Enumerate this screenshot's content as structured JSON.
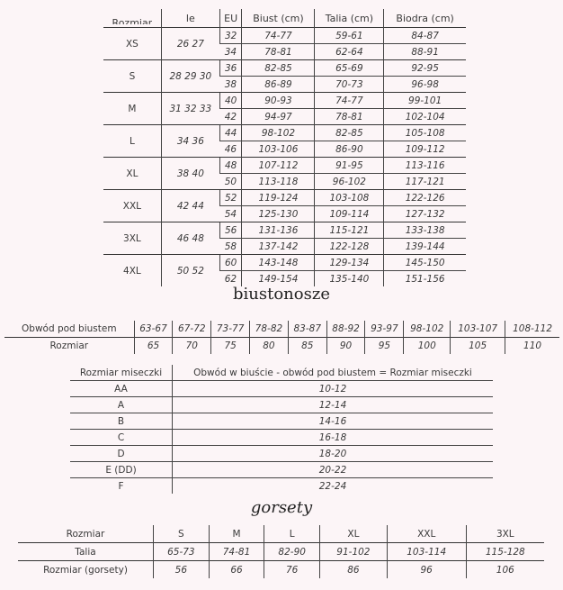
{
  "size_table": {
    "headers": [
      "Rozmiar",
      "le",
      "EU",
      "Biust (cm)",
      "Talia (cm)",
      "Biodra (cm)"
    ],
    "groups": [
      {
        "size": "XS",
        "pl": "26 27",
        "rows": [
          [
            "32",
            "74-77",
            "59-61",
            "84-87"
          ],
          [
            "34",
            "78-81",
            "62-64",
            "88-91"
          ]
        ]
      },
      {
        "size": "S",
        "pl": "28 29 30",
        "rows": [
          [
            "36",
            "82-85",
            "65-69",
            "92-95"
          ],
          [
            "38",
            "86-89",
            "70-73",
            "96-98"
          ]
        ]
      },
      {
        "size": "M",
        "pl": "31 32 33",
        "rows": [
          [
            "40",
            "90-93",
            "74-77",
            "99-101"
          ],
          [
            "42",
            "94-97",
            "78-81",
            "102-104"
          ]
        ]
      },
      {
        "size": "L",
        "pl": "34 36",
        "rows": [
          [
            "44",
            "98-102",
            "82-85",
            "105-108"
          ],
          [
            "46",
            "103-106",
            "86-90",
            "109-112"
          ]
        ]
      },
      {
        "size": "XL",
        "pl": "38 40",
        "rows": [
          [
            "48",
            "107-112",
            "91-95",
            "113-116"
          ],
          [
            "50",
            "113-118",
            "96-102",
            "117-121"
          ]
        ]
      },
      {
        "size": "XXL",
        "pl": "42 44",
        "rows": [
          [
            "52",
            "119-124",
            "103-108",
            "122-126"
          ],
          [
            "54",
            "125-130",
            "109-114",
            "127-132"
          ]
        ]
      },
      {
        "size": "3XL",
        "pl": "46 48",
        "rows": [
          [
            "56",
            "131-136",
            "115-121",
            "133-138"
          ],
          [
            "58",
            "137-142",
            "122-128",
            "139-144"
          ]
        ]
      },
      {
        "size": "4XL",
        "pl": "50 52",
        "rows": [
          [
            "60",
            "143-148",
            "129-134",
            "145-150"
          ],
          [
            "62",
            "149-154",
            "135-140",
            "151-156"
          ]
        ]
      }
    ]
  },
  "bra": {
    "title": "biustonosze",
    "row1": [
      "Obwód pod biustem",
      "63-67",
      "67-72",
      "73-77",
      "78-82",
      "83-87",
      "88-92",
      "93-97",
      "98-102",
      "103-107",
      "108-112"
    ],
    "row2": [
      "Rozmiar",
      "65",
      "70",
      "75",
      "80",
      "85",
      "90",
      "95",
      "100",
      "105",
      "110"
    ]
  },
  "cup": {
    "header": [
      "Rozmiar miseczki",
      "Obwód w biuście - obwód pod biustem = Rozmiar miseczki"
    ],
    "rows": [
      [
        "AA",
        "10-12"
      ],
      [
        "A",
        "12-14"
      ],
      [
        "B",
        "14-16"
      ],
      [
        "C",
        "16-18"
      ],
      [
        "D",
        "18-20"
      ],
      [
        "E (DD)",
        "20-22"
      ],
      [
        "F",
        "22-24"
      ]
    ]
  },
  "corset": {
    "title": "gorsety",
    "rows": [
      [
        "Rozmiar",
        "S",
        "M",
        "L",
        "XL",
        "XXL",
        "3XL"
      ],
      [
        "Talia",
        "65-73",
        "74-81",
        "82-90",
        "91-102",
        "103-114",
        "115-128"
      ],
      [
        "Rozmiar (gorsety)",
        "56",
        "66",
        "76",
        "86",
        "96",
        "106"
      ]
    ]
  }
}
